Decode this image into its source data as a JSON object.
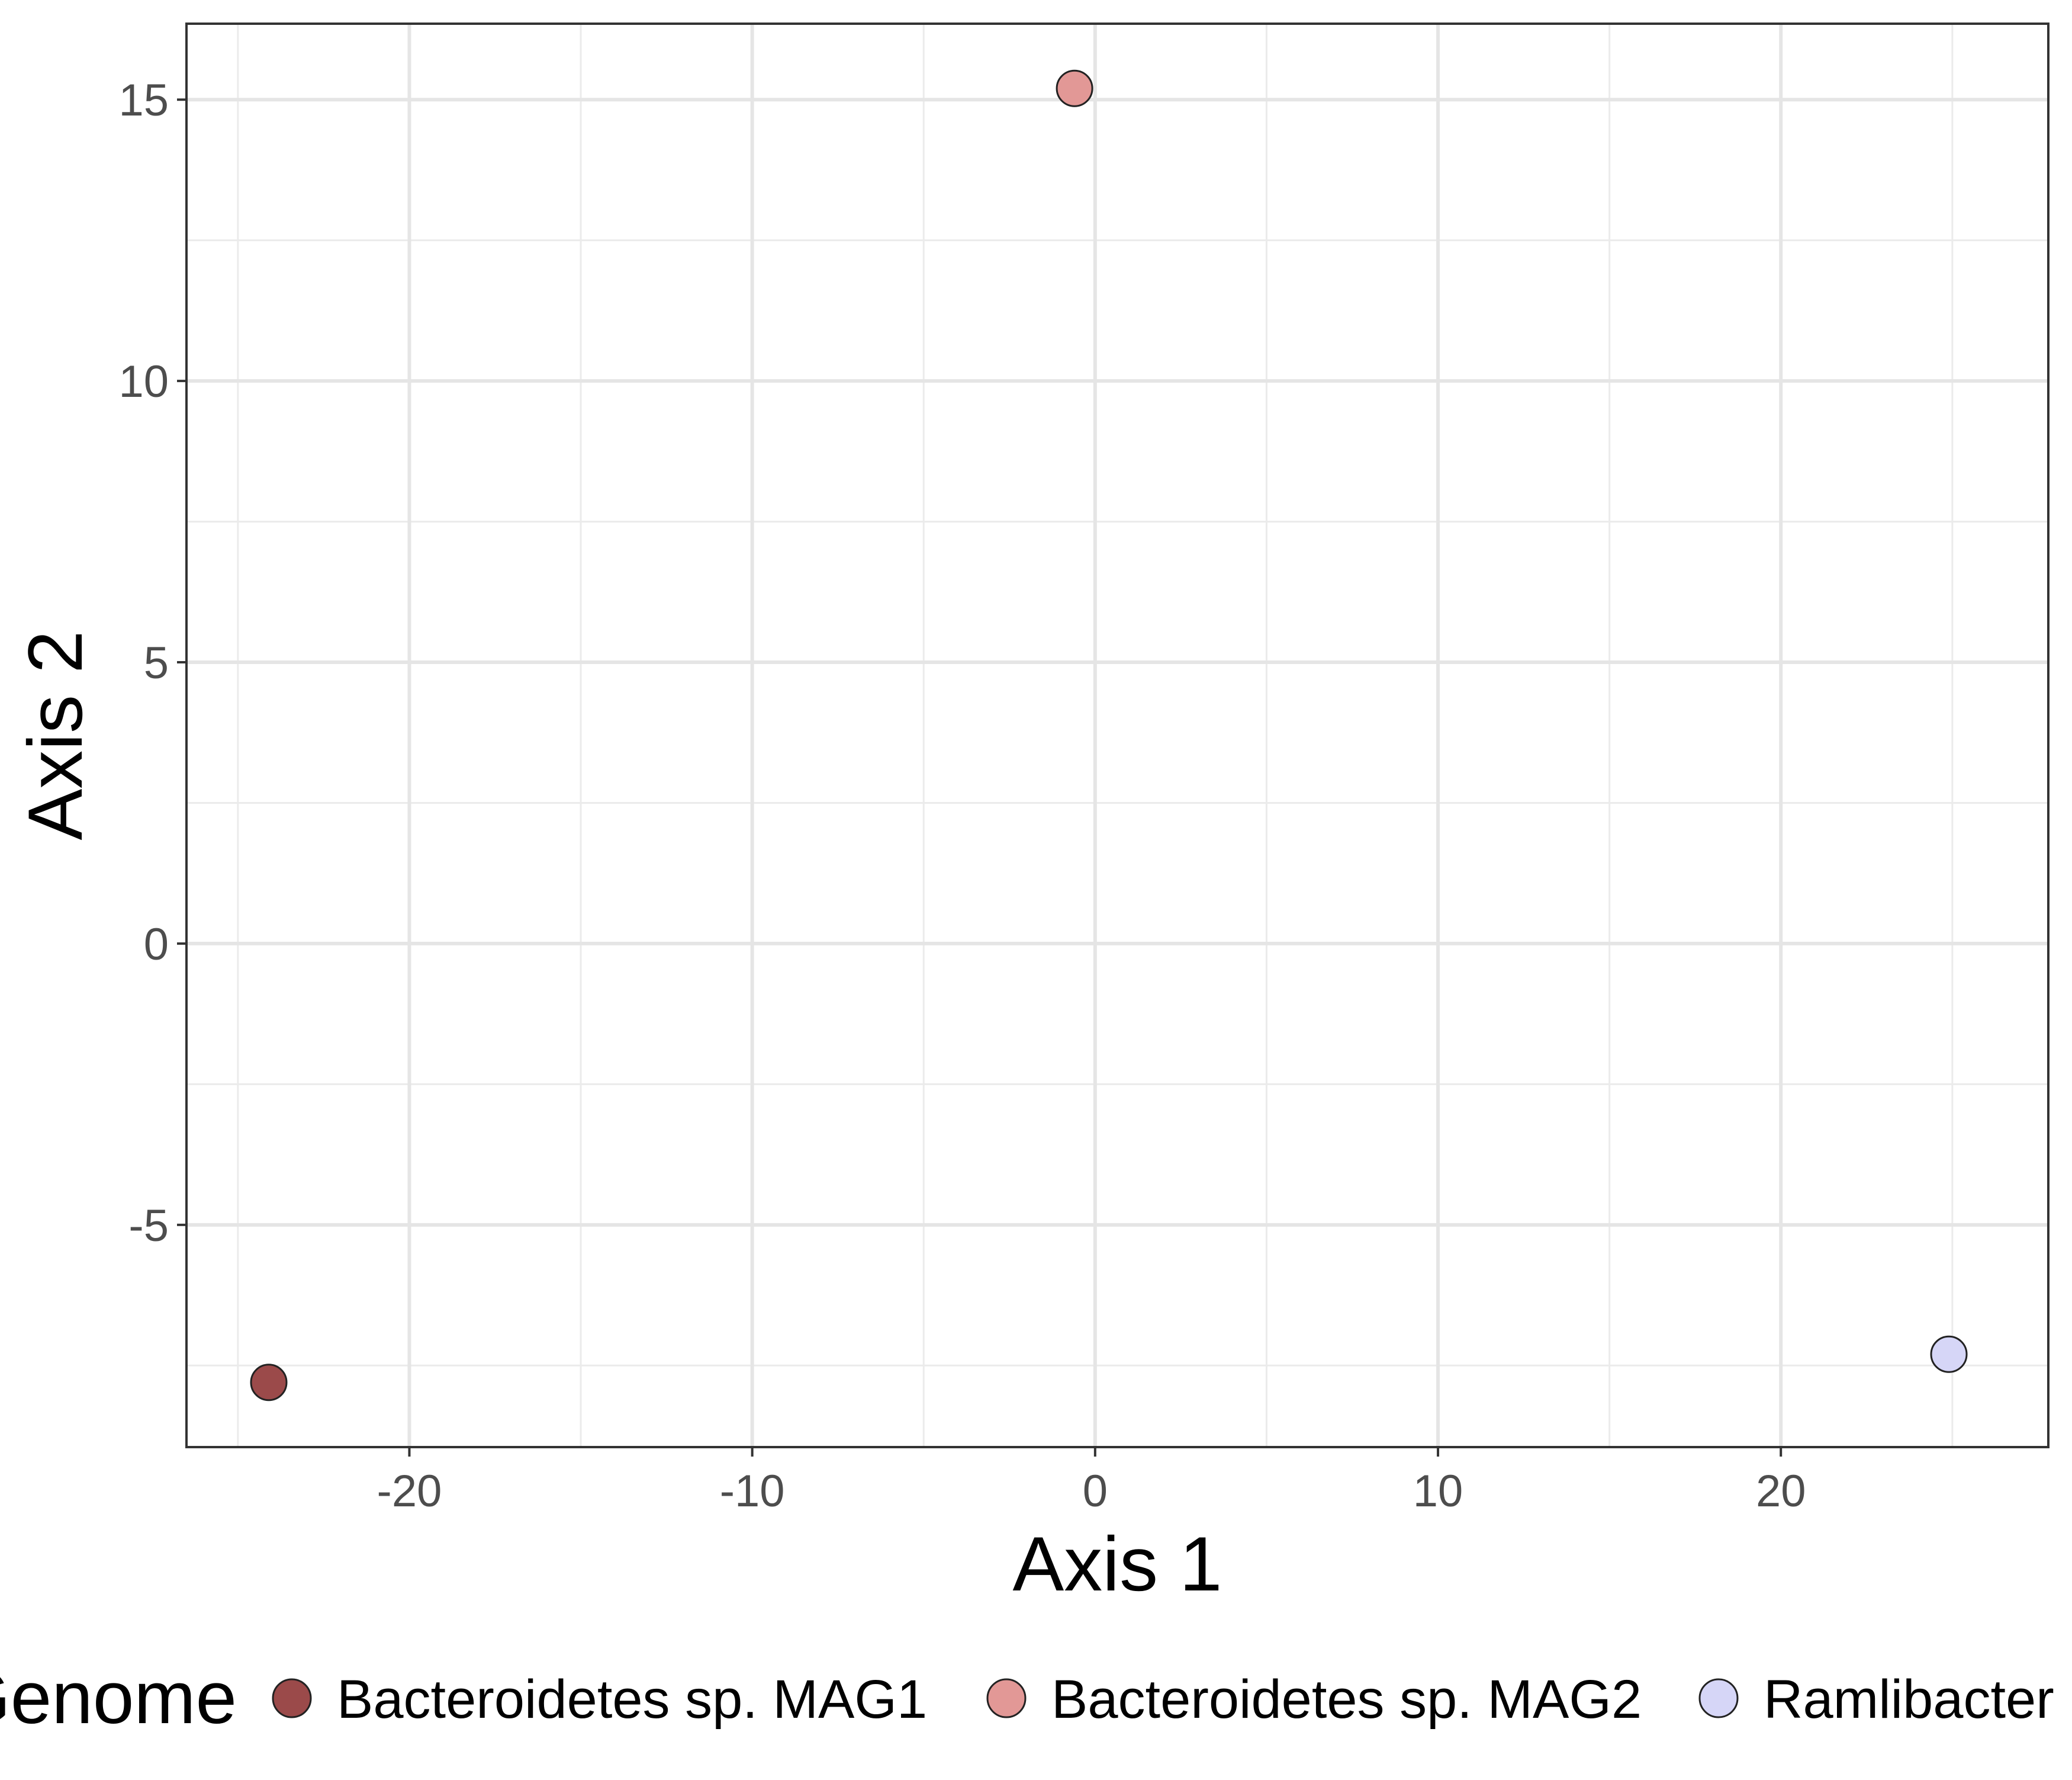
{
  "chart_data": {
    "type": "scatter",
    "xlabel": "Axis 1",
    "ylabel": "Axis 2",
    "xlim": [
      -26.5,
      27.8
    ],
    "ylim": [
      -8.95,
      16.35
    ],
    "x_ticks": [
      -20,
      -10,
      0,
      10,
      20
    ],
    "y_ticks": [
      -5,
      0,
      5,
      10,
      15
    ],
    "x_tick_labels": [
      "-20",
      "-10",
      "0",
      "10",
      "20"
    ],
    "y_tick_labels": [
      "-5",
      "0",
      "5",
      "10",
      "15"
    ],
    "grid": true,
    "legend_title": "Genome",
    "legend_position": "bottom",
    "series": [
      {
        "name": "Bacteroidetes sp. MAG1",
        "color": "#9b4a4a",
        "points": [
          {
            "x": -24.1,
            "y": -7.8
          }
        ]
      },
      {
        "name": "Bacteroidetes sp. MAG2",
        "color": "#e29896",
        "points": [
          {
            "x": -0.6,
            "y": 15.2
          }
        ]
      },
      {
        "name": "Ramlibacter",
        "color": "#d6d6f7",
        "points": [
          {
            "x": 24.9,
            "y": -7.3
          }
        ]
      }
    ]
  }
}
